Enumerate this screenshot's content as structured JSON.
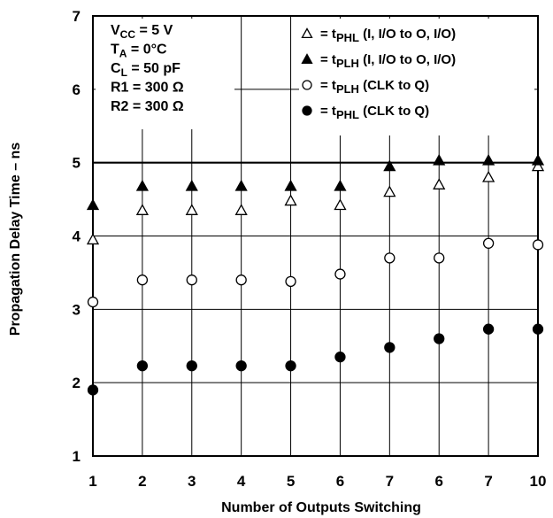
{
  "chart_data": {
    "type": "scatter",
    "xlabel": "Number of Outputs Switching",
    "ylabel": "Propagation Delay Time – ns",
    "categories": [
      "1",
      "2",
      "3",
      "4",
      "5",
      "6",
      "7",
      "6",
      "7",
      "10"
    ],
    "ylim": [
      1,
      7
    ],
    "yticks": [
      "1",
      "2",
      "3",
      "4",
      "5",
      "6",
      "7"
    ],
    "grid": true,
    "conditions": [
      {
        "main": "V",
        "sub": "CC",
        "rest": " = 5 V"
      },
      {
        "main": "T",
        "sub": "A",
        "rest": " = 0°C"
      },
      {
        "main": "C",
        "sub": "L",
        "rest": " = 50 pF"
      },
      {
        "main": "R1 = 300 Ω",
        "sub": "",
        "rest": ""
      },
      {
        "main": "R2 = 300 Ω",
        "sub": "",
        "rest": ""
      }
    ],
    "legend_position": "top-right",
    "series": [
      {
        "marker": "triangle-open",
        "legend_prefix": "= t",
        "legend_sub": "PHL",
        "legend_rest": " (I, I/O to O, I/O)",
        "values": [
          3.95,
          4.35,
          4.35,
          4.35,
          4.48,
          4.42,
          4.6,
          4.7,
          4.8,
          4.95
        ]
      },
      {
        "marker": "triangle-filled",
        "legend_prefix": "= t",
        "legend_sub": "PLH",
        "legend_rest": " (I, I/O to O, I/O)",
        "values": [
          4.42,
          4.68,
          4.68,
          4.68,
          4.68,
          4.68,
          4.95,
          5.03,
          5.03,
          5.03
        ]
      },
      {
        "marker": "circle-open",
        "legend_prefix": "= t",
        "legend_sub": "PLH",
        "legend_rest": " (CLK to Q)",
        "values": [
          3.1,
          3.4,
          3.4,
          3.4,
          3.38,
          3.48,
          3.7,
          3.7,
          3.9,
          3.88
        ]
      },
      {
        "marker": "circle-filled",
        "legend_prefix": "= t",
        "legend_sub": "PHL",
        "legend_rest": " (CLK to Q)",
        "values": [
          1.9,
          2.23,
          2.23,
          2.23,
          2.23,
          2.35,
          2.48,
          2.6,
          2.73,
          2.73
        ]
      }
    ]
  }
}
